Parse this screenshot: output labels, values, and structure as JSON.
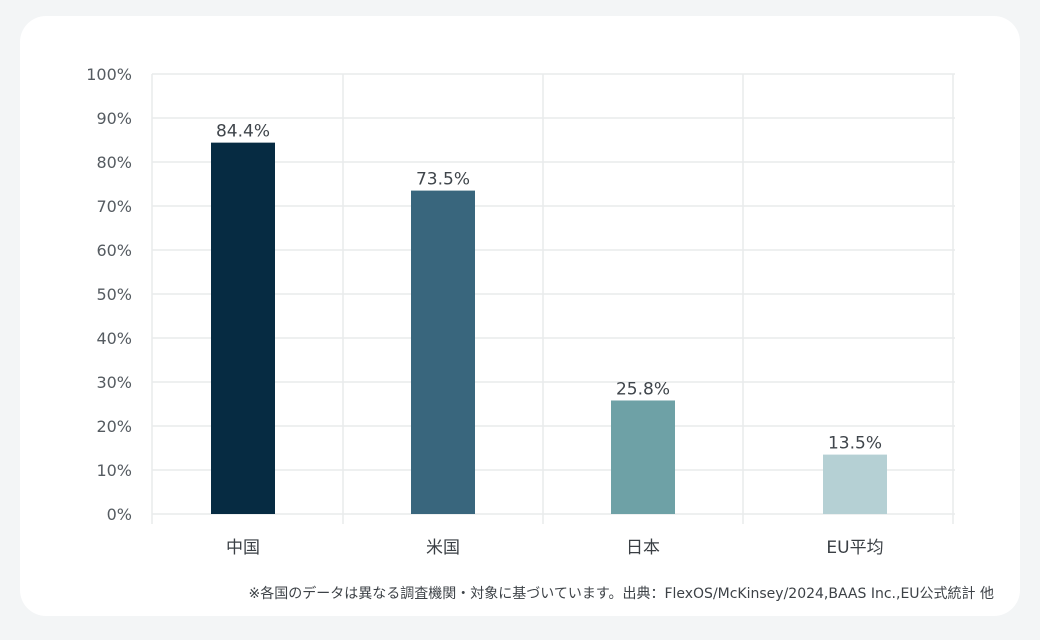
{
  "chart_data": {
    "type": "bar",
    "categories": [
      "中国",
      "米国",
      "日本",
      "EU平均"
    ],
    "values": [
      84.4,
      73.5,
      25.8,
      13.5
    ],
    "value_labels": [
      "84.4%",
      "73.5%",
      "25.8%",
      "13.5%"
    ],
    "colors": [
      "#062b42",
      "#39667d",
      "#6ea1a6",
      "#b5d0d4"
    ],
    "ylim": [
      0,
      100
    ],
    "yticks": [
      0,
      10,
      20,
      30,
      40,
      50,
      60,
      70,
      80,
      90,
      100
    ],
    "ytick_labels": [
      "0%",
      "10%",
      "20%",
      "30%",
      "40%",
      "50%",
      "60%",
      "70%",
      "80%",
      "90%",
      "100%"
    ],
    "grid": true,
    "title": "",
    "xlabel": "",
    "ylabel": ""
  },
  "footnote": "※各国のデータは異なる調査機関・対象に基づいています。出典：FlexOS/McKinsey/2024,BAAS Inc.,EU公式統計 他"
}
